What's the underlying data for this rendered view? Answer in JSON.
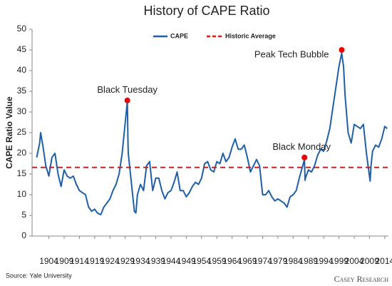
{
  "chart_data": {
    "type": "line",
    "title": "History of CAPE Ratio",
    "y_label": "CAPE Ratio Value",
    "source": "Source: Yale University",
    "logo": "Casey Research",
    "xlim": [
      1898.5,
      2015.2
    ],
    "xticks": [
      1904,
      1909,
      1914,
      1919,
      1924,
      1929,
      1934,
      1939,
      1944,
      1949,
      1954,
      1959,
      1964,
      1969,
      1974,
      1979,
      1984,
      1989,
      1994,
      1999,
      2004,
      2009,
      2014
    ],
    "ylim": [
      0,
      50
    ],
    "yticks": [
      0,
      5,
      10,
      15,
      20,
      25,
      30,
      35,
      40,
      45,
      50
    ],
    "grid": false,
    "legend": "top",
    "series": [
      {
        "name": "CAPE",
        "color": "#1f5fa8",
        "x": [
          1900,
          1901,
          1901.3,
          1902,
          1903,
          1904,
          1905,
          1906,
          1907,
          1908,
          1909,
          1910,
          1911,
          1912,
          1913,
          1914,
          1915,
          1916,
          1917,
          1918,
          1919,
          1920,
          1921,
          1922,
          1923,
          1924,
          1925,
          1926,
          1927,
          1928,
          1929.7,
          1929.9,
          1930,
          1931,
          1932,
          1932.5,
          1933,
          1934,
          1935,
          1936,
          1937,
          1938,
          1939,
          1940,
          1941,
          1942,
          1943,
          1944,
          1945,
          1946,
          1947,
          1948,
          1949,
          1950,
          1951,
          1952,
          1953,
          1954,
          1955,
          1956,
          1957,
          1958,
          1959,
          1960,
          1961,
          1962,
          1963,
          1964,
          1965,
          1966,
          1967,
          1968,
          1969,
          1970,
          1971,
          1972,
          1973,
          1974,
          1975,
          1976,
          1977,
          1978,
          1979,
          1980,
          1981,
          1982,
          1983,
          1984,
          1985,
          1986,
          1987.7,
          1987.9,
          1988,
          1989,
          1990,
          1991,
          1992,
          1993,
          1994,
          1995,
          1996,
          1997,
          1998,
          1999,
          1999.9,
          2000.5,
          2001,
          2002,
          2003,
          2004,
          2005,
          2006,
          2007,
          2008,
          2009.2,
          2009.5,
          2010,
          2011,
          2012,
          2013,
          2014,
          2014.8
        ],
        "values": [
          19,
          22.5,
          25,
          22,
          17,
          14.5,
          19,
          20,
          15,
          12,
          16,
          14.5,
          14,
          14.5,
          12.5,
          11,
          10.5,
          10,
          7,
          6,
          6.5,
          5.5,
          5.2,
          7,
          8,
          9,
          11,
          12.5,
          15,
          20,
          32.6,
          23,
          20,
          13,
          6,
          5.6,
          10,
          12.5,
          11,
          17,
          18,
          11,
          14,
          14,
          11,
          9,
          10.5,
          11,
          13,
          15.5,
          11,
          11,
          9.5,
          10.5,
          12,
          13,
          12.5,
          14,
          17.5,
          18,
          16,
          15.5,
          18,
          17.5,
          20,
          18,
          19,
          21.5,
          23.5,
          21,
          21,
          22,
          19,
          15.5,
          17,
          18.5,
          17,
          10,
          10,
          11,
          9.5,
          8.5,
          9,
          8.5,
          8,
          7,
          9.5,
          10,
          11,
          14,
          18.5,
          13.5,
          14,
          16,
          15.5,
          17,
          19.5,
          21,
          20.5,
          23,
          26,
          31,
          36,
          41,
          44.2,
          41,
          34,
          25,
          22.5,
          27,
          26.5,
          26,
          27,
          20,
          13.3,
          17,
          20.5,
          22,
          21.5,
          23.5,
          26.5,
          26
        ]
      }
    ],
    "reference_line": {
      "name": "Historic Average",
      "value": 16.6,
      "color": "#cc1f1f"
    },
    "annotations": [
      {
        "text": "Black Tuesday",
        "x": 1929.7,
        "y": 32.8
      },
      {
        "text": "Black Monday",
        "x": 1987.7,
        "y": 19
      },
      {
        "text": "Peak Tech Bubble",
        "x": 1999.9,
        "y": 45
      }
    ]
  }
}
